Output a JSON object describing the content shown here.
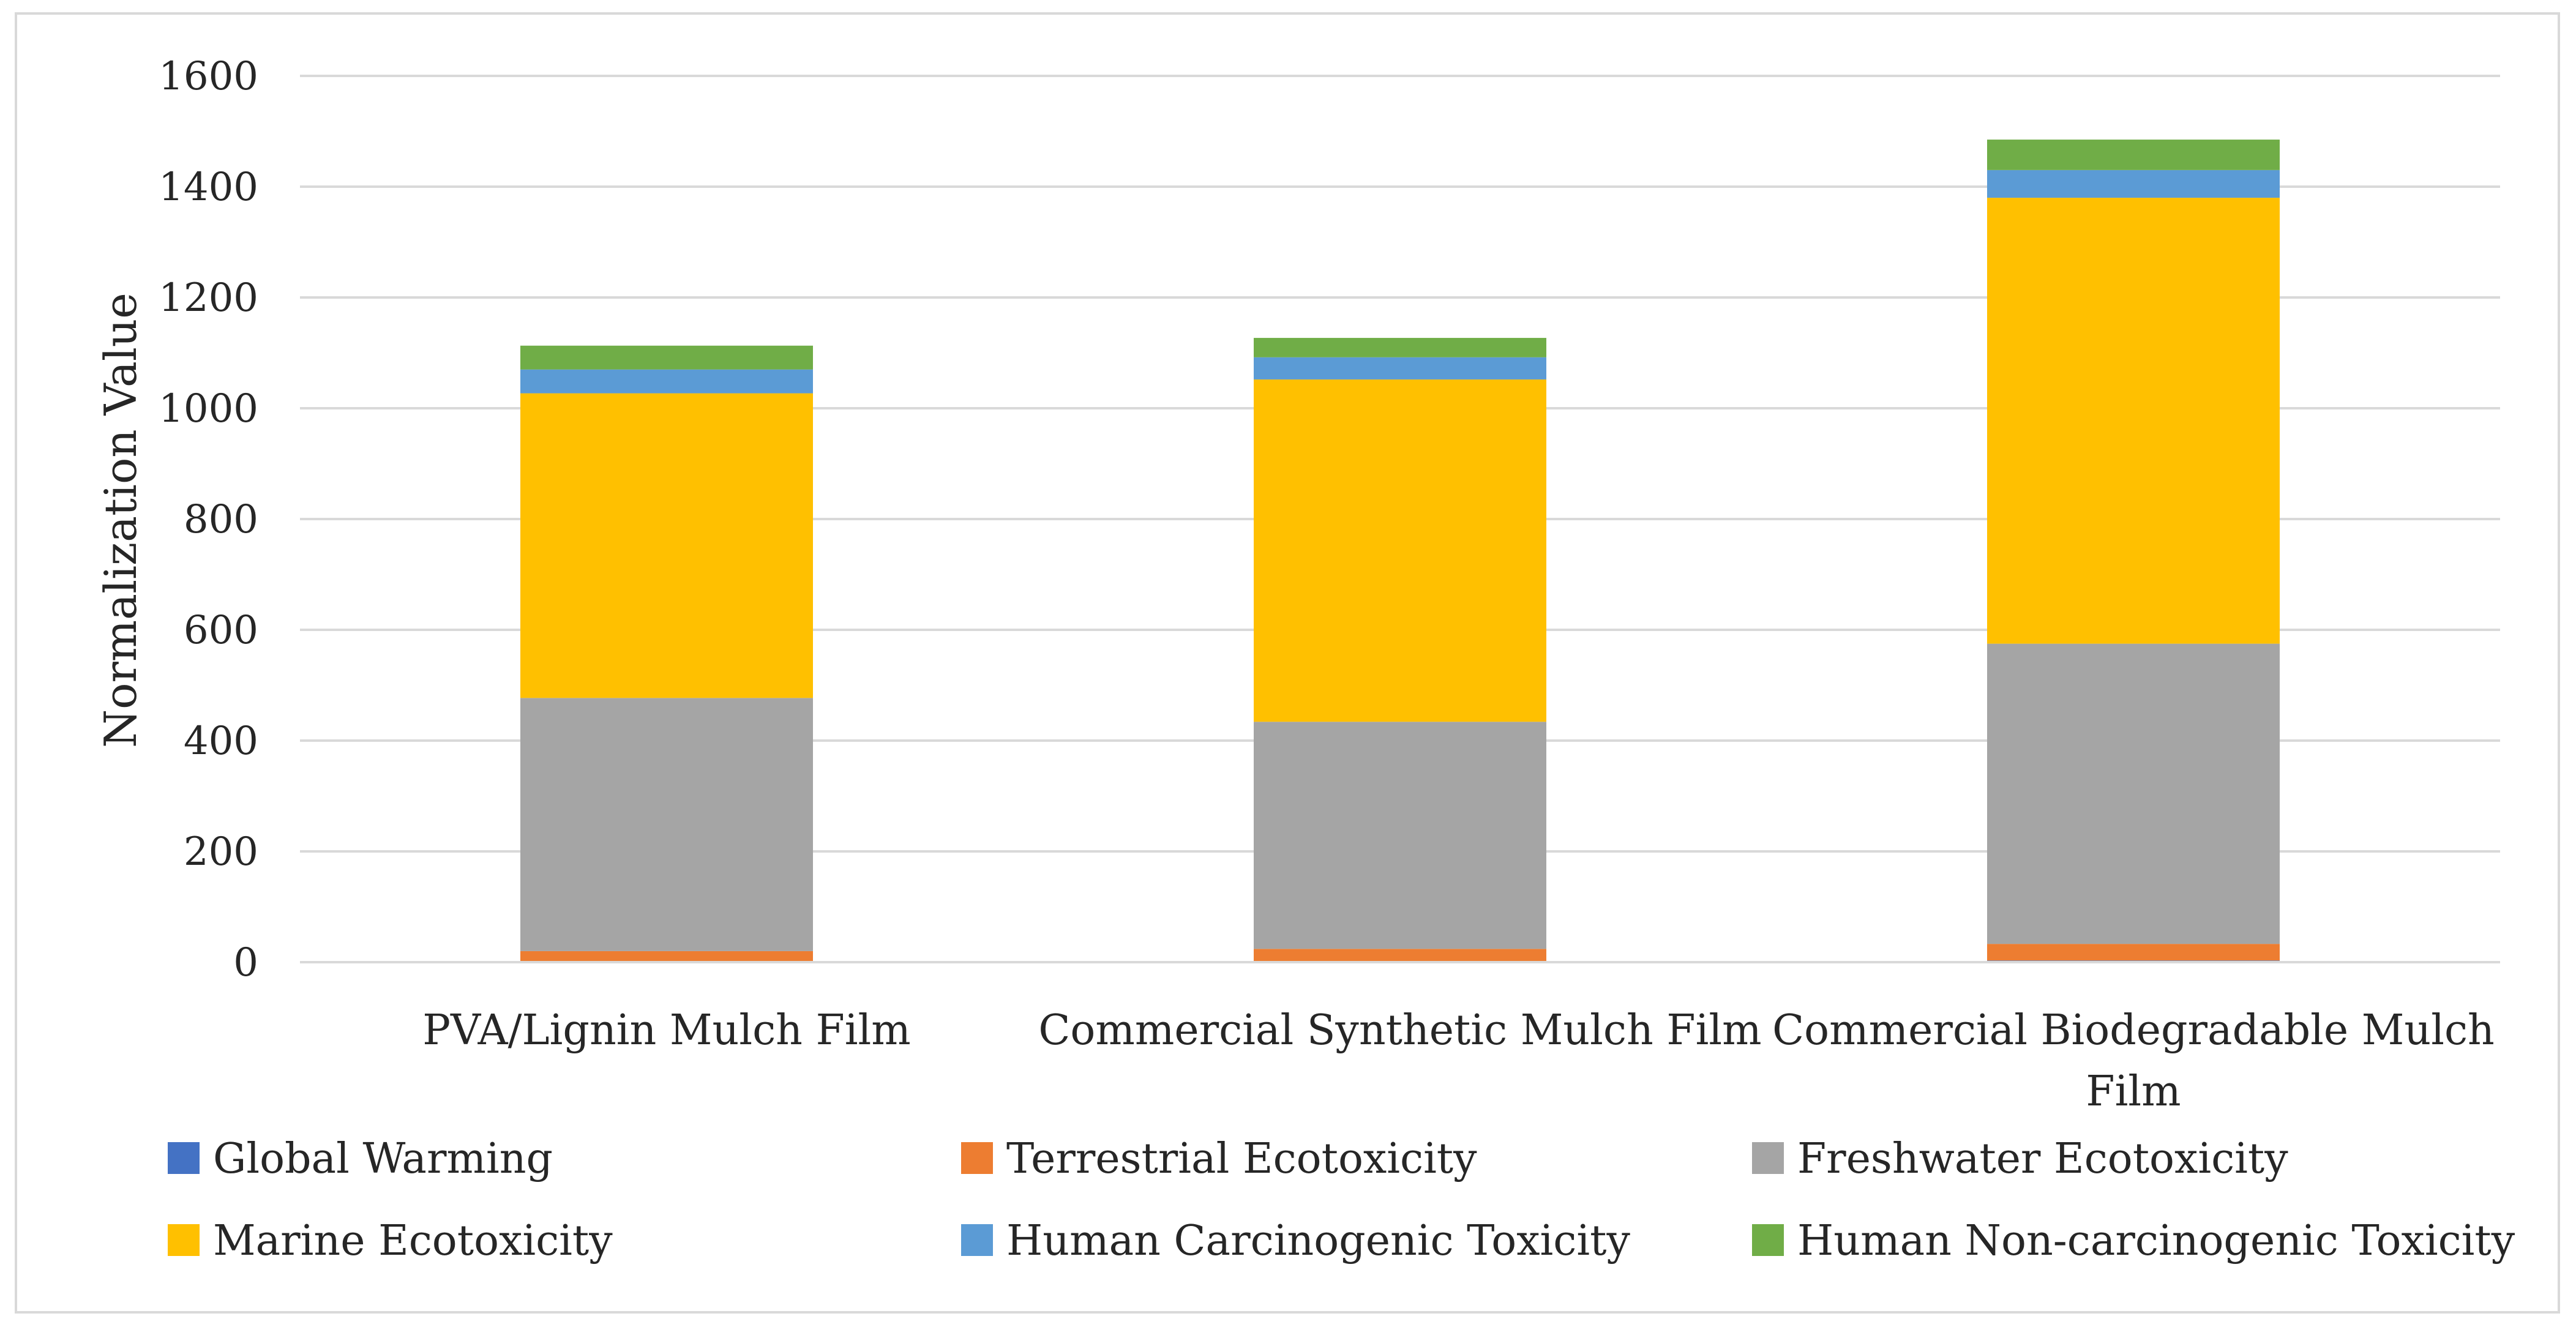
{
  "chart_data": {
    "type": "bar",
    "stacked": true,
    "ylabel": "Normalization Value",
    "ylim": [
      0,
      1600
    ],
    "yticks": [
      0,
      200,
      400,
      600,
      800,
      1000,
      1200,
      1400,
      1600
    ],
    "grid": true,
    "legend_position": "bottom",
    "categories": [
      [
        "PVA/Lignin Mulch Film"
      ],
      [
        "Commercial Synthetic Mulch Film"
      ],
      [
        "Commercial Biodegradable Mulch",
        "Film"
      ]
    ],
    "series": [
      {
        "name": "Global Warming",
        "color": "#4472C4",
        "values": [
          2,
          2,
          3
        ]
      },
      {
        "name": "Terrestrial Ecotoxicity",
        "color": "#ED7D31",
        "values": [
          18,
          22,
          30
        ]
      },
      {
        "name": "Freshwater Ecotoxicity",
        "color": "#A5A5A5",
        "values": [
          457,
          410,
          542
        ]
      },
      {
        "name": "Marine Ecotoxicity",
        "color": "#FFC000",
        "values": [
          550,
          618,
          805
        ]
      },
      {
        "name": "Human Carcinogenic Toxicity",
        "color": "#5B9BD5",
        "values": [
          43,
          40,
          50
        ]
      },
      {
        "name": "Human Non-carcinogenic Toxicity",
        "color": "#70AD47",
        "values": [
          43,
          35,
          55
        ]
      }
    ]
  }
}
